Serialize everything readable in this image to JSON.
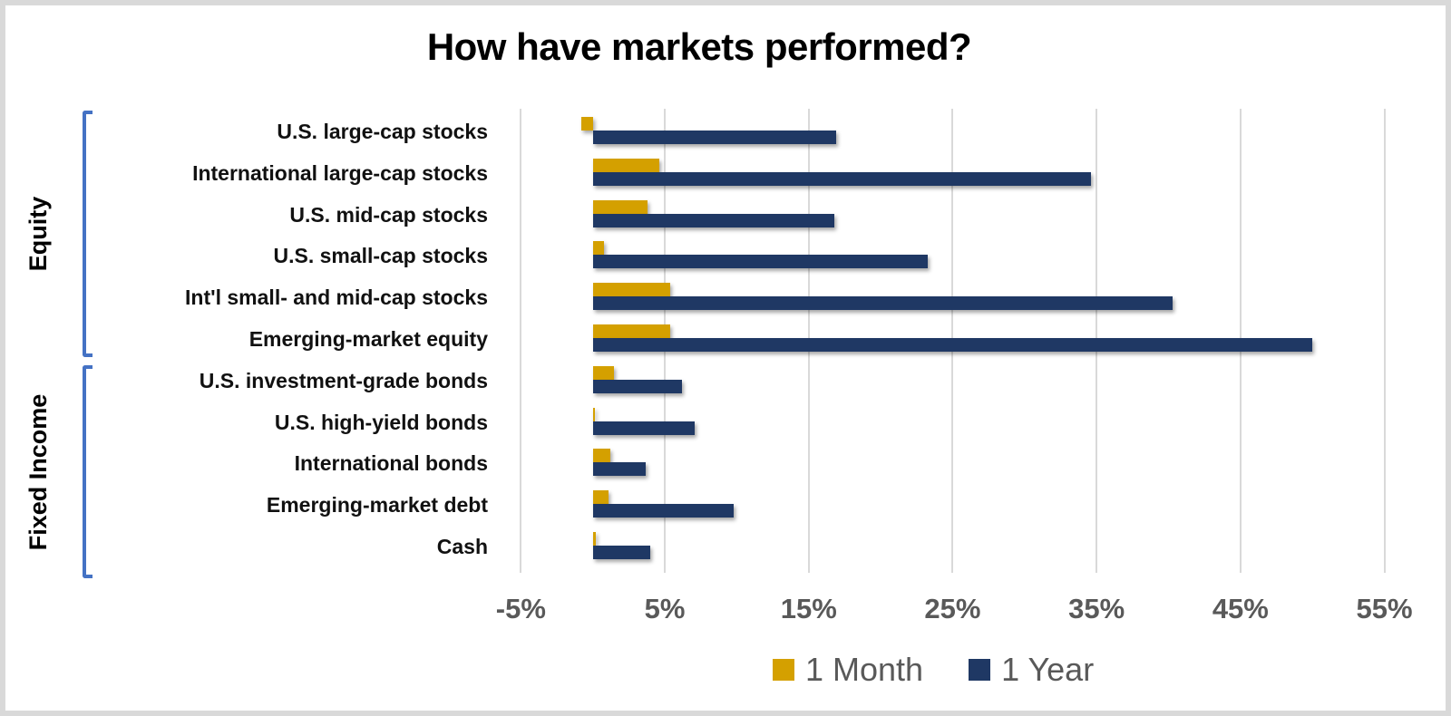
{
  "chart_data": {
    "type": "bar",
    "orientation": "horizontal",
    "title": "How have markets performed?",
    "xlabel": "",
    "ylabel": "",
    "xlim": [
      -5,
      55
    ],
    "x_ticks": [
      "-5%",
      "5%",
      "15%",
      "25%",
      "35%",
      "45%",
      "55%"
    ],
    "grid": true,
    "legend_position": "bottom",
    "groups": [
      {
        "name": "Equity",
        "categories": [
          "U.S. large-cap stocks",
          "International large-cap stocks",
          "U.S. mid-cap stocks",
          "U.S. small-cap stocks",
          "Int'l small- and mid-cap stocks",
          "Emerging-market equity"
        ]
      },
      {
        "name": "Fixed Income",
        "categories": [
          "U.S. investment-grade bonds",
          "U.S. high-yield bonds",
          "International bonds",
          "Emerging-market debt",
          "Cash"
        ]
      }
    ],
    "categories": [
      "U.S. large-cap stocks",
      "International large-cap stocks",
      "U.S. mid-cap stocks",
      "U.S. small-cap stocks",
      "Int'l small- and mid-cap stocks",
      "Emerging-market equity",
      "U.S. investment-grade bonds",
      "U.S. high-yield bonds",
      "International bonds",
      "Emerging-market debt",
      "Cash"
    ],
    "series": [
      {
        "name": "1 Month",
        "color": "#d4a000",
        "values": [
          -0.8,
          4.6,
          3.8,
          0.8,
          5.4,
          5.4,
          1.5,
          0.1,
          1.2,
          1.1,
          0.2
        ]
      },
      {
        "name": "1 Year",
        "color": "#1f3864",
        "values": [
          16.9,
          34.6,
          16.8,
          23.3,
          40.3,
          50.0,
          6.2,
          7.1,
          3.7,
          9.8,
          4.0
        ]
      }
    ],
    "unit": "%"
  },
  "colors": {
    "one_month": "#d4a000",
    "one_year": "#1f3864",
    "bracket": "#4472c4",
    "gridline": "#d9d9d9",
    "tick_text": "#595959"
  }
}
